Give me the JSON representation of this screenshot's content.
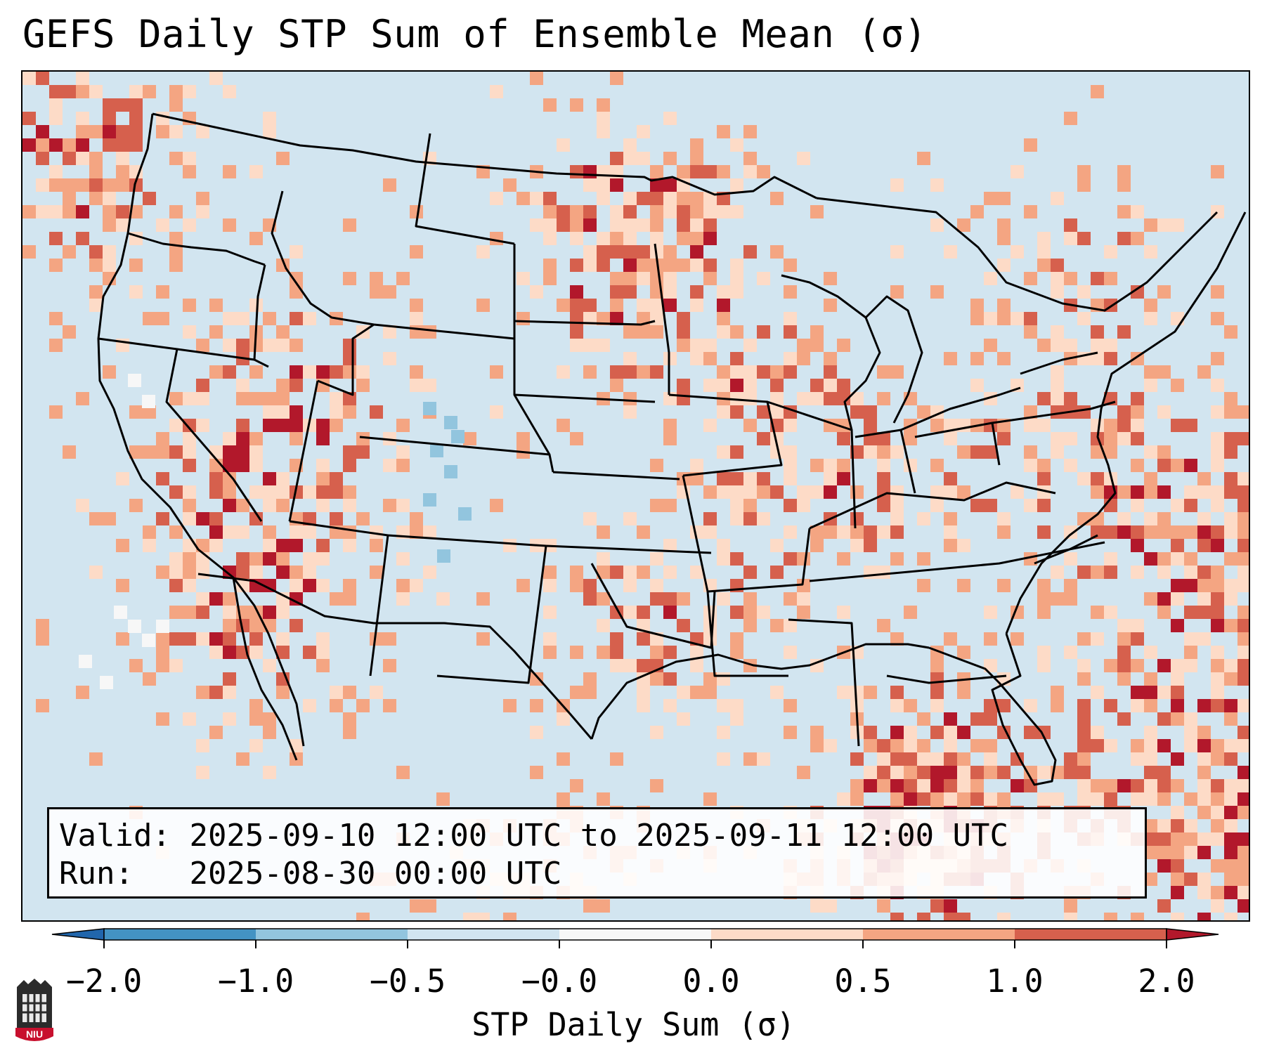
{
  "title": "GEFS Daily STP Sum of Ensemble Mean (σ)",
  "info": {
    "valid_label": "Valid:",
    "valid_value": "2025-09-10 12:00 UTC to 2025-09-11 12:00 UTC",
    "run_label": "Run:",
    "run_value": "2025-08-30 00:00 UTC"
  },
  "colorbar": {
    "label": "STP Daily Sum (σ)",
    "ticks": [
      "−2.0",
      "−1.0",
      "−0.5",
      "−0.0",
      "0.0",
      "0.5",
      "1.0",
      "2.0"
    ],
    "bin_colors": [
      "#4393c3",
      "#92c5de",
      "#d1e5f0",
      "#f7f7f7",
      "#fddbc7",
      "#f4a582",
      "#d6604d"
    ],
    "extend_low_color": "#2166ac",
    "extend_high_color": "#b2182b"
  },
  "map": {
    "region": "CONUS",
    "background_bin_color": "#d1e5f0",
    "ocean_color": "#d2e5f0"
  },
  "logo": {
    "text": "NIU"
  }
}
